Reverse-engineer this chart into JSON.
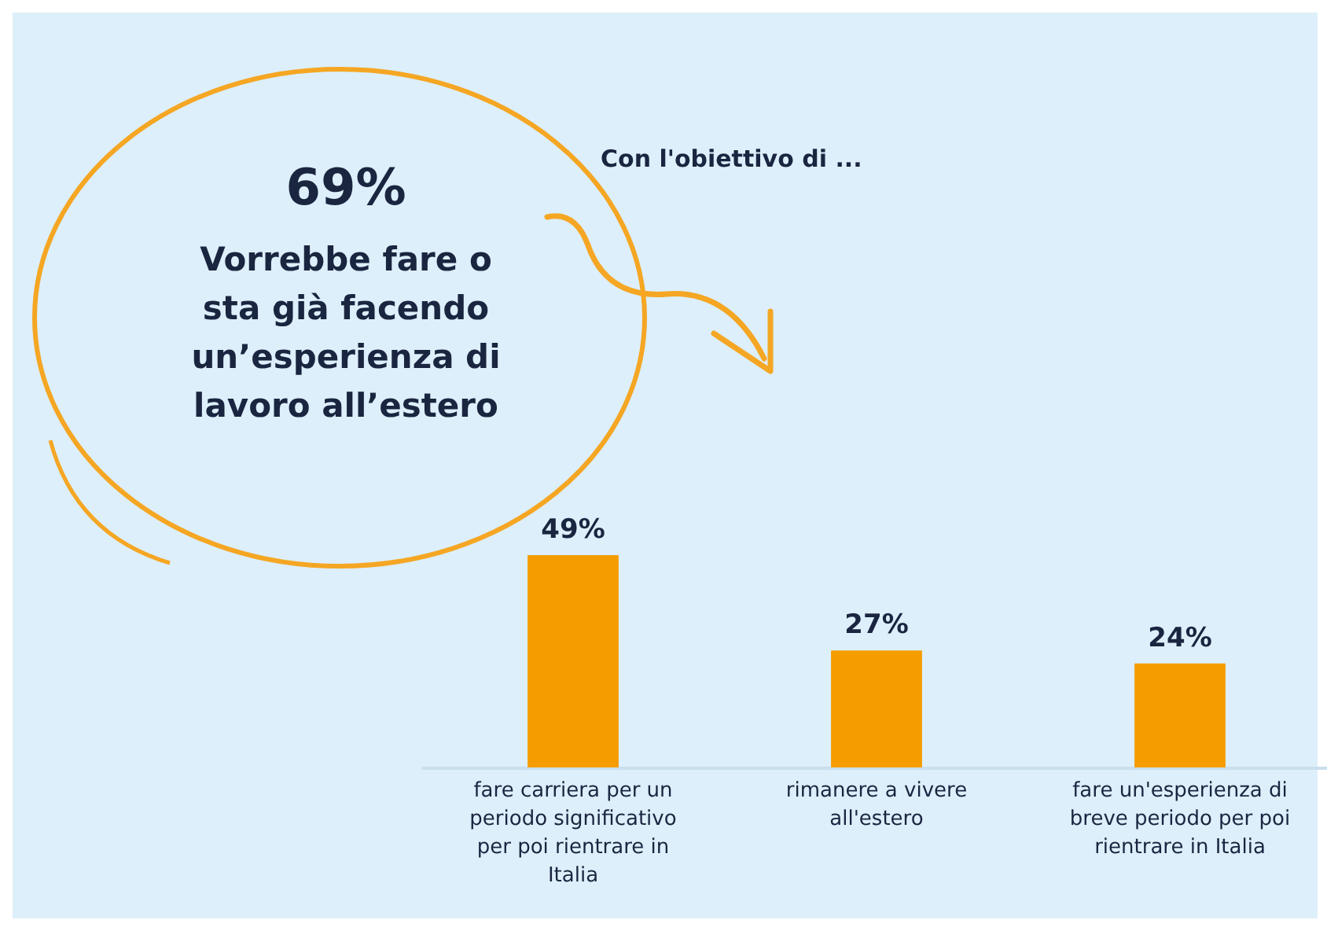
{
  "chart_data": {
    "type": "bar",
    "categories": [
      "fare carriera per un periodo significativo per poi rientrare in Italia",
      "rimanere a vivere all'estero",
      "fare un'esperienza di breve periodo per poi rientrare in Italia"
    ],
    "values": [
      49,
      27,
      24
    ],
    "value_labels": [
      "49%",
      "27%",
      "24%"
    ],
    "color": "#f59c00",
    "annotations": [
      "69%",
      "Vorrebbe fare o sta già facendo un’esperienza di lavoro all’estero",
      "Con l'obiettivo di ..."
    ]
  }
}
